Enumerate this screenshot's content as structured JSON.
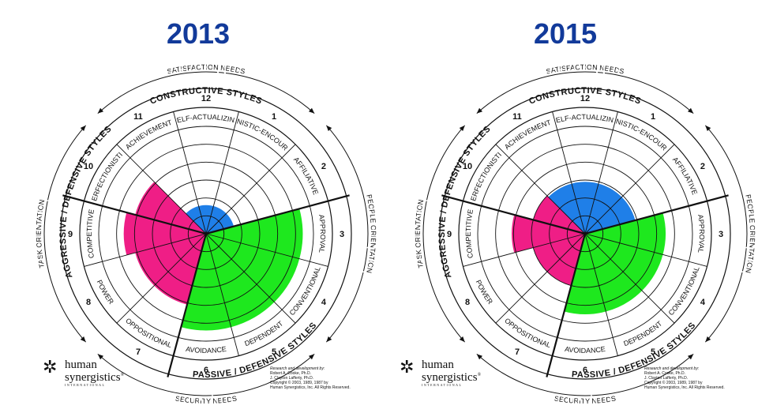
{
  "chart_data": [
    {
      "type": "circumplex",
      "title": "2013",
      "styles": [
        {
          "number": "1",
          "name": "HUMANISTIC-ENCOURAGING",
          "group": "constructive",
          "value": 0
        },
        {
          "number": "2",
          "name": "AFFILIATIVE",
          "group": "constructive",
          "value": 0
        },
        {
          "number": "3",
          "name": "APPROVAL",
          "group": "passive",
          "value": 5.4
        },
        {
          "number": "4",
          "name": "CONVENTIONAL",
          "group": "passive",
          "value": 5.4
        },
        {
          "number": "5",
          "name": "DEPENDENT",
          "group": "passive",
          "value": 5.4
        },
        {
          "number": "6",
          "name": "AVOIDANCE",
          "group": "passive",
          "value": 5.4
        },
        {
          "number": "7",
          "name": "OPPOSITIONAL",
          "group": "aggressive",
          "value": 4.1
        },
        {
          "number": "8",
          "name": "POWER",
          "group": "aggressive",
          "value": 4.1
        },
        {
          "number": "9",
          "name": "COMPETITIVE",
          "group": "aggressive",
          "value": 4.6
        },
        {
          "number": "10",
          "name": "PERFECTIONISTIC",
          "group": "aggressive",
          "value": 4.1
        },
        {
          "number": "11",
          "name": "ACHIEVEMENT",
          "group": "constructive",
          "value": 0
        },
        {
          "number": "12",
          "name": "SELF-ACTUALIZING",
          "group": "constructive",
          "value": 0
        },
        {
          "number": "",
          "name": "CONSTRUCTIVE (overall)",
          "group": "constructive",
          "value": 1.6
        }
      ]
    },
    {
      "type": "circumplex",
      "title": "2015",
      "styles": [
        {
          "number": "1",
          "name": "HUMANISTIC-ENCOURAGING",
          "group": "constructive",
          "value": 0
        },
        {
          "number": "2",
          "name": "AFFILIATIVE",
          "group": "constructive",
          "value": 0
        },
        {
          "number": "3",
          "name": "APPROVAL",
          "group": "passive",
          "value": 4.5
        },
        {
          "number": "4",
          "name": "CONVENTIONAL",
          "group": "passive",
          "value": 4.5
        },
        {
          "number": "5",
          "name": "DEPENDENT",
          "group": "passive",
          "value": 4.5
        },
        {
          "number": "6",
          "name": "AVOIDANCE",
          "group": "passive",
          "value": 4.5
        },
        {
          "number": "7",
          "name": "OPPOSITIONAL",
          "group": "aggressive",
          "value": 3.0
        },
        {
          "number": "8",
          "name": "POWER",
          "group": "aggressive",
          "value": 3.0
        },
        {
          "number": "9",
          "name": "COMPETITIVE",
          "group": "aggressive",
          "value": 4.1
        },
        {
          "number": "10",
          "name": "PERFECTIONISTIC",
          "group": "aggressive",
          "value": 3.0
        },
        {
          "number": "11",
          "name": "ACHIEVEMENT",
          "group": "constructive",
          "value": 0
        },
        {
          "number": "12",
          "name": "SELF-ACTUALIZING",
          "group": "constructive",
          "value": 0
        },
        {
          "number": "",
          "name": "CONSTRUCTIVE (overall)",
          "group": "constructive",
          "value": 2.9
        }
      ]
    }
  ],
  "group_labels": {
    "constructive": "CONSTRUCTIVE STYLES",
    "passive": "PASSIVE / DEFENSIVE STYLES",
    "aggressive": "AGGRESSIVE / DEFENSIVE STYLES"
  },
  "outer_labels": {
    "top": "SATISFACTION NEEDS",
    "bottom": "SECURITY NEEDS",
    "right": "PEOPLE ORIENTATION",
    "left": "TASK ORIENTATION"
  },
  "colors": {
    "constructive": "#1f7fe8",
    "passive": "#1ee81e",
    "aggressive": "#ef1e86",
    "title": "#123a9a"
  },
  "logo": {
    "line1": "human",
    "line2": "synergistics",
    "line3": "INTERNATIONAL",
    "mark": "®"
  },
  "credits": {
    "line1": "Research and development by:",
    "line2": "Robert A. Cooke, Ph.D.",
    "line3": "J. Clayton Lafferty, Ph.D.",
    "line4": "Copyright © 2003, 1989, 1987 by",
    "line5": "Human Synergistics, Inc. All Rights Reserved."
  }
}
